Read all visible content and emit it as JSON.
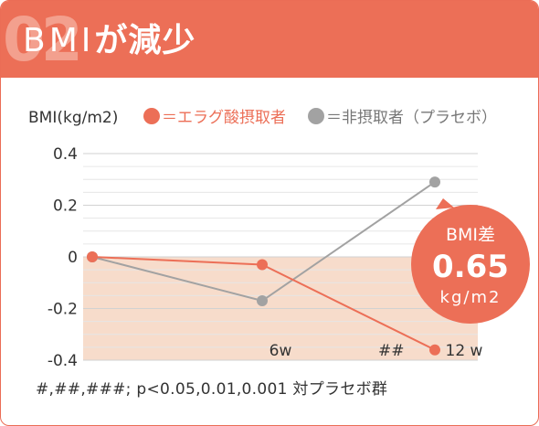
{
  "header": {
    "number": "02",
    "title_latin": "BMI",
    "title_rest": "が減少"
  },
  "chart_data": {
    "type": "line",
    "ylabel": "BMI(kg/m2)",
    "x": [
      "0",
      "6w",
      "12w"
    ],
    "x_tick_labels": [
      "",
      "6w",
      "12 w"
    ],
    "y_ticks": [
      "0.4",
      "0.2",
      "0",
      "-0.2",
      "-0.4"
    ],
    "ylim": [
      -0.4,
      0.4
    ],
    "grid": true,
    "legend_position": "top",
    "series": [
      {
        "name": "＝エラグ酸摂取者",
        "color": "#ec6f57",
        "values": [
          0,
          -0.03,
          -0.36
        ]
      },
      {
        "name": "＝非摂取者（プラセボ）",
        "color": "#a2a2a2",
        "values": [
          0,
          -0.17,
          0.29
        ]
      }
    ],
    "annotations": [
      {
        "text": "##",
        "x": "12w"
      }
    ],
    "negative_region_color": "#f7dccb",
    "difference_bubble": {
      "label": "BMI差",
      "value": "0.65",
      "unit": "kg/m2"
    },
    "footnote": "#,##,###; p<0.05,0.01,0.001 対プラセボ群"
  }
}
